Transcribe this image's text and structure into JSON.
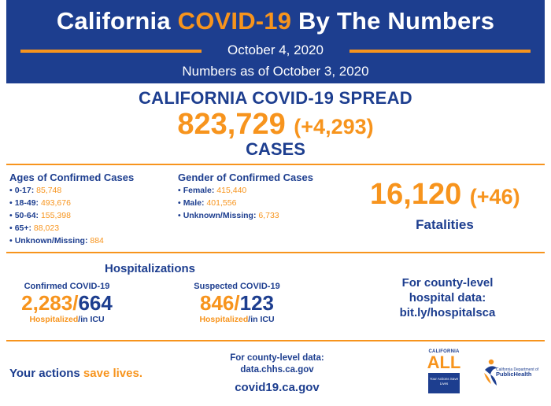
{
  "header": {
    "title_part1": "California",
    "title_highlight": "COVID-19",
    "title_part2": "By The Numbers",
    "date": "October 4, 2020",
    "as_of": "Numbers as of October 3, 2020"
  },
  "spread": {
    "title": "CALIFORNIA COVID-19 SPREAD",
    "cases": "823,729",
    "cases_delta": "(+4,293)",
    "cases_label": "CASES"
  },
  "ages": {
    "heading": "Ages of Confirmed Cases",
    "items": [
      {
        "label": "0-17:",
        "value": "85,748"
      },
      {
        "label": "18-49:",
        "value": "493,676"
      },
      {
        "label": "50-64:",
        "value": "155,398"
      },
      {
        "label": "65+:",
        "value": "88,023"
      },
      {
        "label": "Unknown/Missing:",
        "value": "884"
      }
    ]
  },
  "gender": {
    "heading": "Gender of Confirmed Cases",
    "items": [
      {
        "label": "Female:",
        "value": "415,440"
      },
      {
        "label": "Male:",
        "value": "401,556"
      },
      {
        "label": "Unknown/Missing:",
        "value": "6,733"
      }
    ]
  },
  "fatalities": {
    "number": "16,120",
    "delta": "(+46)",
    "label": "Fatalities"
  },
  "hospitalizations": {
    "title": "Hospitalizations",
    "confirmed": {
      "label": "Confirmed COVID-19",
      "hospitalized": "2,283",
      "icu": "664",
      "hospitalized_label": "Hospitalized",
      "icu_label": "in ICU"
    },
    "suspected": {
      "label": "Suspected COVID-19",
      "hospitalized": "846",
      "icu": "123",
      "hospitalized_label": "Hospitalized",
      "icu_label": "in ICU"
    }
  },
  "county_hospital": {
    "line1": "For county-level",
    "line2": "hospital data:",
    "line3": "bit.ly/hospitalsca"
  },
  "footer": {
    "actions_part1": "Your actions",
    "actions_highlight": "save lives.",
    "county_line1": "For county-level data:",
    "county_line2": "data.chhs.ca.gov",
    "site": "covid19.ca.gov",
    "ca_all_top": "CALIFORNIA",
    "ca_all_word": "ALL",
    "ca_all_box": "Your Actions Save Lives",
    "cdph_small": "California Department of",
    "cdph_big": "PublicHealth"
  },
  "colors": {
    "navy": "#1d3e8f",
    "orange": "#f7941d"
  }
}
